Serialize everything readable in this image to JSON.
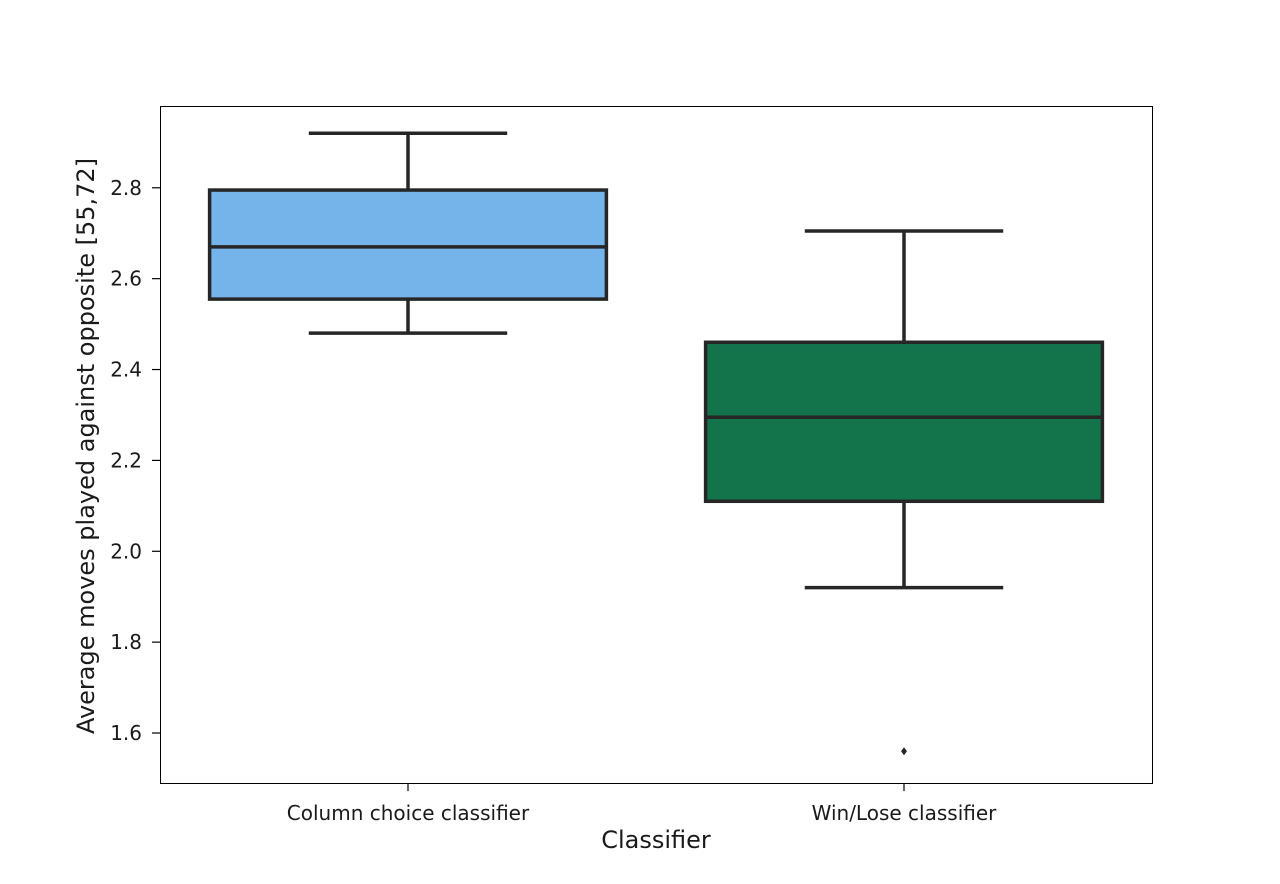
{
  "chart_data": {
    "type": "box",
    "title": "",
    "xlabel": "Classifier",
    "ylabel": "Average moves played against opposite [55,72]",
    "categories": [
      "Column choice classifier",
      "Win/Lose classifier"
    ],
    "ylim": [
      1.49,
      2.98
    ],
    "yticks": [
      1.6,
      1.8,
      2.0,
      2.2,
      2.4,
      2.6,
      2.8
    ],
    "ytick_labels": [
      "1.6",
      "1.8",
      "2.0",
      "2.2",
      "2.4",
      "2.6",
      "2.8"
    ],
    "grid": false,
    "legend": "none",
    "boxes": [
      {
        "category": "Column choice classifier",
        "whisker_low": 2.48,
        "q1": 2.555,
        "median": 2.67,
        "q3": 2.795,
        "whisker_high": 2.92,
        "outliers": [],
        "color": "#75b4ea"
      },
      {
        "category": "Win/Lose classifier",
        "whisker_low": 1.92,
        "q1": 2.11,
        "median": 2.295,
        "q3": 2.46,
        "whisker_high": 2.705,
        "outliers": [
          1.56
        ],
        "color": "#13744c"
      }
    ],
    "line_color": "#262626"
  }
}
